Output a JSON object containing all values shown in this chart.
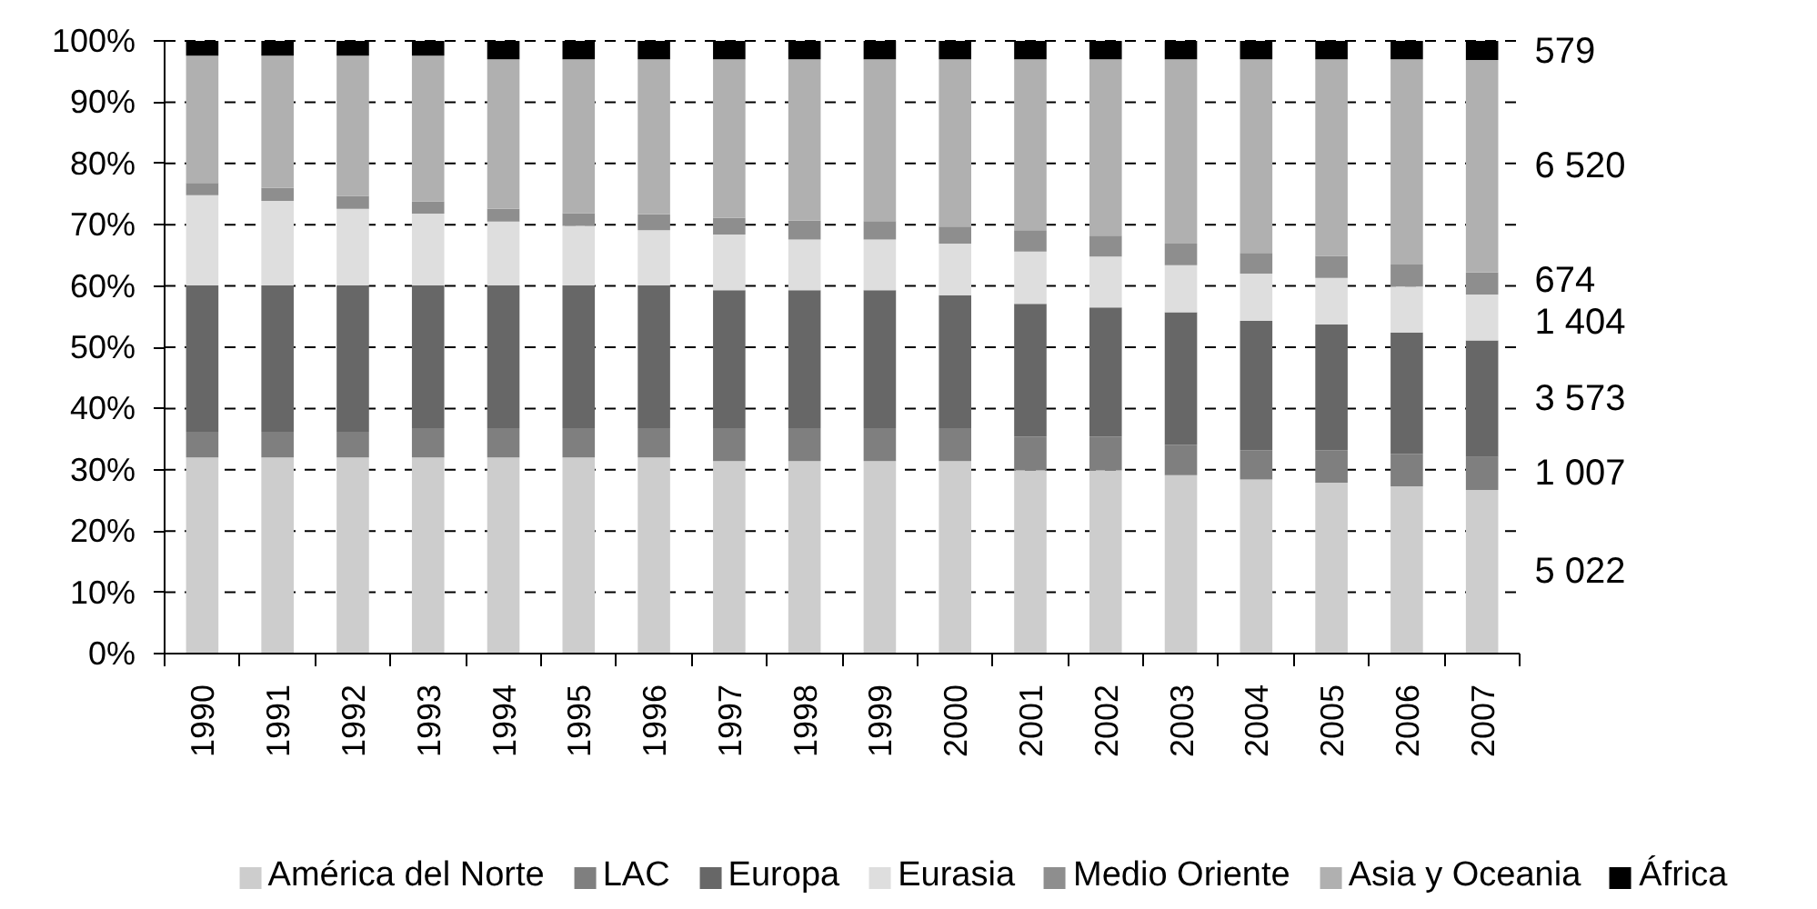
{
  "chart_data": {
    "type": "bar",
    "stacked": true,
    "categories": [
      "1990",
      "1991",
      "1992",
      "1993",
      "1994",
      "1995",
      "1996",
      "1997",
      "1998",
      "1999",
      "2000",
      "2001",
      "2002",
      "2003",
      "2004",
      "2005",
      "2006",
      "2007"
    ],
    "ylim": [
      0,
      100
    ],
    "yticks": [
      {
        "value": 0,
        "label": "0%"
      },
      {
        "value": 10,
        "label": "10%"
      },
      {
        "value": 20,
        "label": "20%"
      },
      {
        "value": 30,
        "label": "30%"
      },
      {
        "value": 40,
        "label": "40%"
      },
      {
        "value": 50,
        "label": "50%"
      },
      {
        "value": 60,
        "label": "60%"
      },
      {
        "value": 70,
        "label": "70%"
      },
      {
        "value": 80,
        "label": "80%"
      },
      {
        "value": 90,
        "label": "90%"
      },
      {
        "value": 100,
        "label": "100%"
      }
    ],
    "grid": "y",
    "legend": "bottom",
    "series": [
      {
        "name": "América del Norte",
        "color": "#cdcdcd",
        "values": [
          32.0,
          32.0,
          32.0,
          32.0,
          32.0,
          32.0,
          32.0,
          31.4,
          31.4,
          31.4,
          31.4,
          29.9,
          29.9,
          29.1,
          28.4,
          27.9,
          27.3,
          26.7
        ]
      },
      {
        "name": "LAC",
        "color": "#7f7f7f",
        "values": [
          4.2,
          4.2,
          4.2,
          4.8,
          4.8,
          4.8,
          4.8,
          5.4,
          5.4,
          5.4,
          5.4,
          5.5,
          5.5,
          5.0,
          4.8,
          5.3,
          5.3,
          5.4
        ]
      },
      {
        "name": "Europa",
        "color": "#676767",
        "values": [
          23.9,
          23.9,
          23.9,
          23.3,
          23.3,
          23.3,
          23.3,
          22.5,
          22.5,
          22.5,
          21.7,
          21.7,
          21.1,
          21.6,
          21.1,
          20.5,
          19.8,
          19.0
        ]
      },
      {
        "name": "Eurasia",
        "color": "#dedede",
        "values": [
          14.7,
          13.8,
          12.5,
          11.7,
          10.4,
          9.7,
          9.0,
          9.1,
          8.3,
          8.3,
          8.4,
          8.5,
          8.3,
          7.7,
          7.7,
          7.6,
          7.5,
          7.5
        ]
      },
      {
        "name": "Medio Oriente",
        "color": "#8e8e8e",
        "values": [
          2.0,
          2.1,
          2.1,
          2.0,
          2.1,
          2.1,
          2.6,
          2.7,
          3.1,
          3.0,
          2.8,
          3.5,
          3.4,
          3.5,
          3.4,
          3.6,
          3.6,
          3.6
        ]
      },
      {
        "name": "Asia y Oceania",
        "color": "#b0b0b0",
        "values": [
          20.8,
          21.6,
          22.9,
          23.8,
          24.4,
          25.1,
          25.3,
          25.9,
          26.3,
          26.4,
          27.3,
          27.9,
          28.8,
          30.1,
          31.6,
          32.1,
          33.5,
          34.7
        ]
      },
      {
        "name": "África",
        "color": "#000000",
        "values": [
          2.4,
          2.4,
          2.4,
          2.4,
          3.0,
          3.0,
          3.0,
          3.0,
          3.0,
          3.0,
          3.0,
          3.0,
          3.0,
          3.0,
          3.0,
          3.0,
          3.0,
          3.1
        ]
      }
    ],
    "annotations": [
      "579",
      "6 520",
      "674",
      "1 404",
      "3 573",
      "1 007",
      "5 022"
    ]
  }
}
